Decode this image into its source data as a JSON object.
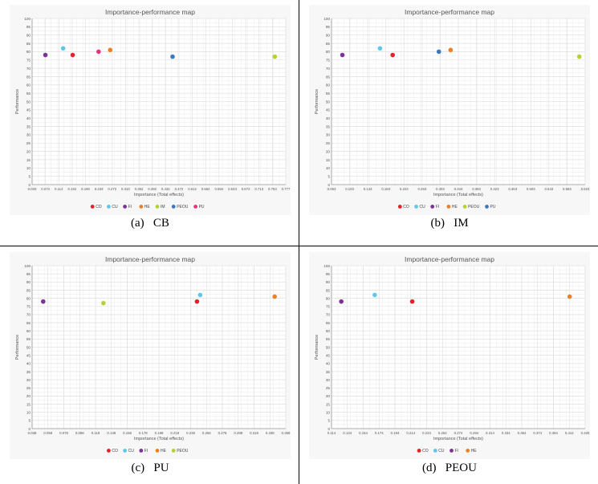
{
  "colors": {
    "CO": "#e2222a",
    "CU": "#5ec7ea",
    "FI": "#7b3294",
    "HE": "#f07f22",
    "IM": "#b3d335",
    "PEOU": "#b3d335",
    "PEOU_im": "#b3d335",
    "PEOU_cb": "#3c78c0",
    "PU_cb": "#e8327e",
    "PU_im": "#3c78c0"
  },
  "chart_data": [
    {
      "type": "scatter",
      "caption": "(a)   CB",
      "title": "Importance-performance map",
      "xlabel": "Importance (Total effects)",
      "ylabel": "Performance",
      "xlim": [
        0.033,
        0.777
      ],
      "ylim": [
        0,
        100
      ],
      "grid": true,
      "legend_position": "bottom",
      "xticks": [
        "0.033",
        "0.072",
        "0.112",
        "0.152",
        "0.190",
        "0.233",
        "0.272",
        "0.310",
        "0.352",
        "0.392",
        "0.432",
        "0.472",
        "0.512",
        "0.552",
        "0.592",
        "0.633",
        "0.672",
        "0.713",
        "0.753",
        "0.777"
      ],
      "yticks": [
        "0",
        "5",
        "10",
        "15",
        "20",
        "25",
        "30",
        "35",
        "40",
        "45",
        "50",
        "55",
        "60",
        "65",
        "70",
        "75",
        "80",
        "85",
        "90",
        "95",
        "100"
      ],
      "series": [
        {
          "name": "CO",
          "color": "#e2222a",
          "x": 0.152,
          "y": 78
        },
        {
          "name": "CU",
          "color": "#5ec7ea",
          "x": 0.124,
          "y": 82
        },
        {
          "name": "FI",
          "color": "#7b3294",
          "x": 0.072,
          "y": 78
        },
        {
          "name": "HE",
          "color": "#f07f22",
          "x": 0.262,
          "y": 81
        },
        {
          "name": "IM",
          "color": "#b3d335",
          "x": 0.745,
          "y": 77
        },
        {
          "name": "PEOU",
          "color": "#3c78c0",
          "x": 0.445,
          "y": 77
        },
        {
          "name": "PU",
          "color": "#e8327e",
          "x": 0.228,
          "y": 80
        }
      ]
    },
    {
      "type": "scatter",
      "caption": "(b)   IM",
      "title": "Importance-performance map",
      "xlabel": "Importance (Total effects)",
      "ylabel": "Performance",
      "xlim": [
        0.063,
        0.623
      ],
      "ylim": [
        0,
        100
      ],
      "grid": true,
      "legend_position": "bottom",
      "xticks": [
        "0.063",
        "0.103",
        "0.143",
        "0.183",
        "0.223",
        "0.263",
        "0.303",
        "0.343",
        "0.383",
        "0.423",
        "0.463",
        "0.503",
        "0.543",
        "0.583",
        "0.623"
      ],
      "yticks": [
        "0",
        "5",
        "10",
        "15",
        "20",
        "25",
        "30",
        "35",
        "40",
        "45",
        "50",
        "55",
        "60",
        "65",
        "70",
        "75",
        "80",
        "85",
        "90",
        "95",
        "100"
      ],
      "series": [
        {
          "name": "CO",
          "color": "#e2222a",
          "x": 0.198,
          "y": 78
        },
        {
          "name": "CU",
          "color": "#5ec7ea",
          "x": 0.17,
          "y": 82
        },
        {
          "name": "FI",
          "color": "#7b3294",
          "x": 0.087,
          "y": 78
        },
        {
          "name": "HE",
          "color": "#f07f22",
          "x": 0.326,
          "y": 81
        },
        {
          "name": "PEOU",
          "color": "#b3d335",
          "x": 0.61,
          "y": 77
        },
        {
          "name": "PU",
          "color": "#3c78c0",
          "x": 0.3,
          "y": 80
        }
      ]
    },
    {
      "type": "scatter",
      "caption": "(c)   PU",
      "title": "Importance-performance map",
      "xlabel": "Importance (Total effects)",
      "ylabel": "Performance",
      "xlim": [
        0.038,
        0.358
      ],
      "ylim": [
        0,
        100
      ],
      "grid": true,
      "legend_position": "bottom",
      "xticks": [
        "0.038",
        "0.058",
        "0.078",
        "0.098",
        "0.118",
        "0.138",
        "0.158",
        "0.178",
        "0.198",
        "0.218",
        "0.238",
        "0.258",
        "0.278",
        "0.298",
        "0.318",
        "0.338",
        "0.358"
      ],
      "yticks": [
        "0",
        "5",
        "10",
        "15",
        "20",
        "25",
        "30",
        "35",
        "40",
        "45",
        "50",
        "55",
        "60",
        "65",
        "70",
        "75",
        "80",
        "85",
        "90",
        "95",
        "100"
      ],
      "series": [
        {
          "name": "CO",
          "color": "#e2222a",
          "x": 0.246,
          "y": 78
        },
        {
          "name": "CU",
          "color": "#5ec7ea",
          "x": 0.25,
          "y": 82
        },
        {
          "name": "FI",
          "color": "#7b3294",
          "x": 0.052,
          "y": 78
        },
        {
          "name": "HE",
          "color": "#f07f22",
          "x": 0.344,
          "y": 81
        },
        {
          "name": "PEOU",
          "color": "#b3d335",
          "x": 0.128,
          "y": 77
        }
      ]
    },
    {
      "type": "scatter",
      "caption": "(d)   PEOU",
      "title": "Importance-performance map",
      "xlabel": "Importance (Total effects)",
      "ylabel": "Performance",
      "xlim": [
        0.114,
        0.425
      ],
      "ylim": [
        0,
        100
      ],
      "grid": true,
      "legend_position": "bottom",
      "xticks": [
        "0.114",
        "0.134",
        "0.154",
        "0.174",
        "0.194",
        "0.214",
        "0.234",
        "0.254",
        "0.274",
        "0.294",
        "0.314",
        "0.334",
        "0.354",
        "0.374",
        "0.394",
        "0.414",
        "0.425"
      ],
      "yticks": [
        "0",
        "5",
        "10",
        "15",
        "20",
        "25",
        "30",
        "35",
        "40",
        "45",
        "50",
        "55",
        "60",
        "65",
        "70",
        "75",
        "80",
        "85",
        "90",
        "95",
        "100"
      ],
      "series": [
        {
          "name": "CO",
          "color": "#e2222a",
          "x": 0.213,
          "y": 78
        },
        {
          "name": "CU",
          "color": "#5ec7ea",
          "x": 0.167,
          "y": 82
        },
        {
          "name": "FI",
          "color": "#7b3294",
          "x": 0.126,
          "y": 78
        },
        {
          "name": "HE",
          "color": "#f07f22",
          "x": 0.406,
          "y": 81
        }
      ]
    }
  ]
}
